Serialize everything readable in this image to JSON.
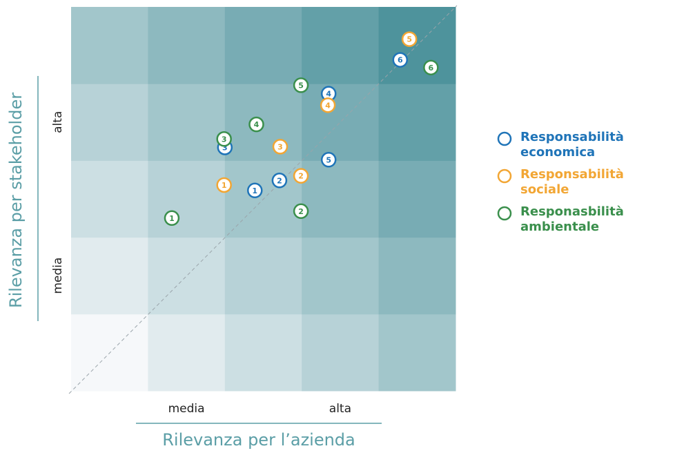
{
  "chart_data": {
    "type": "scatter",
    "xlabel": "Rilevanza per l’azienda",
    "ylabel": "Rilevanza per stakeholder",
    "xlim": [
      0,
      5
    ],
    "ylim": [
      0,
      5
    ],
    "xticks": [
      {
        "value": 1.5,
        "label": "media"
      },
      {
        "value": 3.5,
        "label": "alta"
      }
    ],
    "yticks": [
      {
        "value": 1.5,
        "label": "media"
      },
      {
        "value": 3.5,
        "label": "alta"
      }
    ],
    "series": [
      {
        "name": "Responsabilità economica",
        "color": "#1f74b8",
        "labels": [
          1,
          2,
          3,
          4,
          5,
          6
        ],
        "x": [
          2.39,
          2.71,
          2.0,
          3.35,
          3.35,
          4.28
        ],
        "values": [
          2.61,
          2.74,
          3.17,
          3.87,
          3.01,
          4.31
        ]
      },
      {
        "name": "Responsabilità sociale",
        "color": "#f2a634",
        "labels": [
          1,
          2,
          3,
          4,
          5
        ],
        "x": [
          1.99,
          2.99,
          2.72,
          3.34,
          4.4
        ],
        "values": [
          2.68,
          2.8,
          3.18,
          3.72,
          4.58
        ]
      },
      {
        "name": "Responasbilità ambientale",
        "color": "#3a8f4c",
        "labels": [
          1,
          2,
          3,
          4,
          5,
          6
        ],
        "x": [
          1.31,
          2.99,
          1.99,
          2.41,
          2.99,
          4.68
        ],
        "values": [
          2.25,
          2.34,
          3.28,
          3.47,
          3.98,
          4.21
        ]
      }
    ]
  }
}
